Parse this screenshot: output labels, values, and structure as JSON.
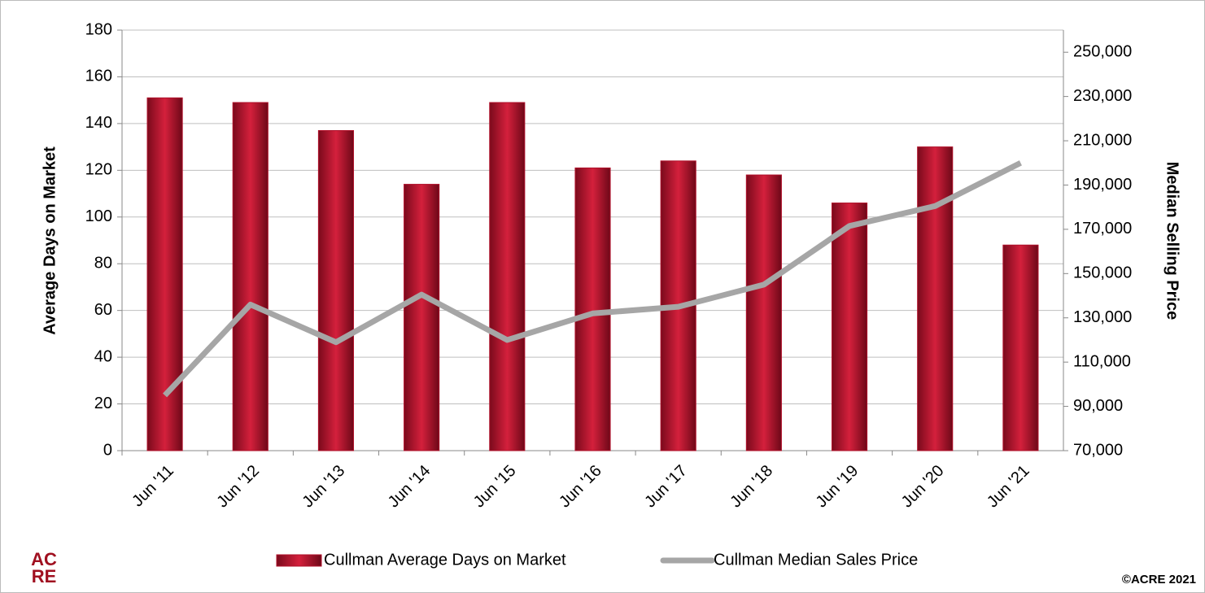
{
  "chart_data": {
    "type": "bar_line",
    "y_label": "Average Days on Market",
    "y2_label": "Median Selling Price",
    "categories": [
      "Jun '11",
      "Jun '12",
      "Jun '13",
      "Jun '14",
      "Jun '15",
      "Jun '16",
      "Jun '17",
      "Jun '18",
      "Jun '19",
      "Jun '20",
      "Jun '21"
    ],
    "series": [
      {
        "name": "Cullman Average Days on Market",
        "type": "bar",
        "color": "#b0102a",
        "values": [
          151,
          149,
          137,
          114,
          149,
          121,
          124,
          118,
          106,
          130,
          88
        ]
      },
      {
        "name": "Cullman Median Sales Price",
        "type": "line",
        "axis": "y2",
        "color": "#a6a6a6",
        "values": [
          95000,
          136000,
          119000,
          140500,
          120000,
          132000,
          135000,
          145000,
          171500,
          180500,
          200000
        ]
      }
    ],
    "ylim": [
      0,
      180
    ],
    "yticks": [
      0,
      20,
      40,
      60,
      80,
      100,
      120,
      140,
      160,
      180
    ],
    "y2lim": [
      70000,
      260000
    ],
    "y2ticks": [
      {
        "value": 70000,
        "label": "70,000"
      },
      {
        "value": 90000,
        "label": "90,000"
      },
      {
        "value": 110000,
        "label": "110,000"
      },
      {
        "value": 130000,
        "label": "130,000"
      },
      {
        "value": 150000,
        "label": "150,000"
      },
      {
        "value": 170000,
        "label": "170,000"
      },
      {
        "value": 190000,
        "label": "190,000"
      },
      {
        "value": 210000,
        "label": "210,000"
      },
      {
        "value": 230000,
        "label": "230,000"
      },
      {
        "value": 250000,
        "label": "250,000"
      }
    ],
    "grid": true,
    "legend": "bottom",
    "logo": [
      "AC",
      "RE"
    ],
    "copyright": "©ACRE 2021"
  }
}
